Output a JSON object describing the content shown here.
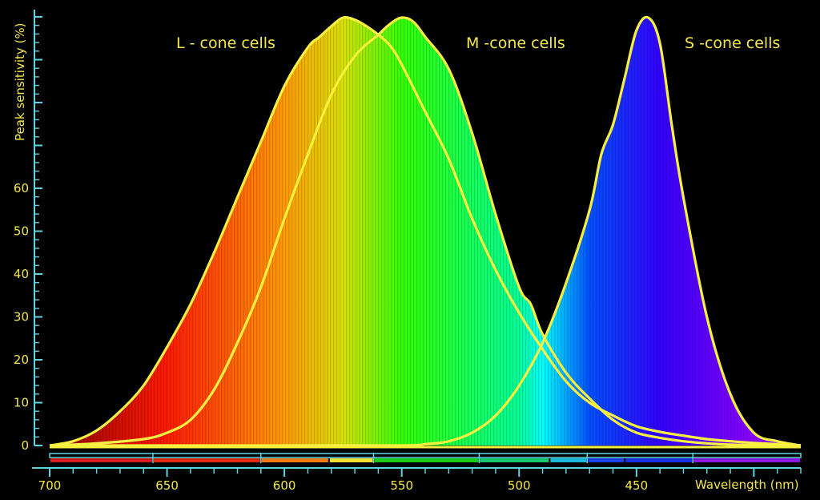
{
  "chart_data": {
    "type": "area",
    "title": "",
    "xlabel": "Wavelength (nm)",
    "ylabel": "Peak sensitivity (%)",
    "xlim": [
      700,
      380
    ],
    "ylim": [
      0,
      100
    ],
    "x_ticks": [
      "700",
      "650",
      "600",
      "550",
      "500",
      "450"
    ],
    "y_ticks": [
      "0",
      "10",
      "20",
      "30",
      "40",
      "50",
      "60"
    ],
    "series": [
      {
        "name": "L - cone cells",
        "x": [
          700,
          690,
          680,
          670,
          660,
          650,
          640,
          630,
          620,
          610,
          600,
          590,
          585,
          580,
          575,
          570,
          565,
          560,
          555,
          550,
          540,
          530,
          520,
          510,
          500,
          490,
          480,
          470,
          460,
          450,
          440,
          430,
          420,
          410,
          400,
          390,
          380
        ],
        "values": [
          0,
          1,
          3.5,
          8,
          14,
          23,
          33,
          45,
          58,
          71,
          84,
          93,
          95.5,
          98,
          100,
          99.5,
          98,
          96,
          93.5,
          89,
          78,
          67,
          53,
          41,
          31,
          22.5,
          15,
          10,
          7,
          4.5,
          3.2,
          2.3,
          1.5,
          1,
          0.6,
          0.3,
          0
        ]
      },
      {
        "name": "M -cone cells",
        "x": [
          700,
          680,
          660,
          650,
          640,
          630,
          620,
          610,
          600,
          590,
          580,
          570,
          560,
          555,
          550,
          545,
          540,
          530,
          520,
          510,
          500,
          495,
          490,
          480,
          470,
          460,
          450,
          440,
          430,
          420,
          410,
          400,
          390,
          380
        ],
        "values": [
          0,
          0.5,
          1.5,
          3,
          6,
          13,
          24,
          37,
          53,
          68,
          82,
          91,
          96,
          98.5,
          100,
          99,
          95.5,
          88,
          73,
          54,
          37,
          33,
          26,
          17,
          11,
          6,
          3,
          1.8,
          1,
          0.5,
          0.2,
          0.1,
          0.1,
          0
        ]
      },
      {
        "name": "S -cone cells",
        "x": [
          700,
          600,
          550,
          540,
          530,
          520,
          510,
          500,
          490,
          480,
          470,
          465,
          460,
          455,
          450,
          445,
          440,
          435,
          430,
          420,
          410,
          400,
          390,
          380
        ],
        "values": [
          0,
          0,
          0,
          0.3,
          1,
          3,
          7,
          14,
          24,
          38,
          55,
          68,
          75,
          86,
          97,
          100,
          94,
          75,
          58,
          30,
          12,
          3,
          1,
          0
        ]
      }
    ],
    "legend": [
      {
        "name": "L - cone cells",
        "position": "top-left"
      },
      {
        "name": "M -cone cells",
        "position": "top-center"
      },
      {
        "name": "S -cone cells",
        "position": "top-right"
      }
    ],
    "colors": {
      "background": "#000000",
      "text": "#f5e84a",
      "curve_outline": "#f8f040",
      "axis": "#5fd4e2",
      "spectrum_colors_nm": {
        "700": "#8a0000",
        "650": "#ff1a00",
        "600": "#ff9a00",
        "575": "#d8e200",
        "550": "#33ff00",
        "500": "#00ff99",
        "490": "#00ffff",
        "470": "#0050ff",
        "440": "#3300ff",
        "400": "#8a00ff"
      }
    }
  }
}
